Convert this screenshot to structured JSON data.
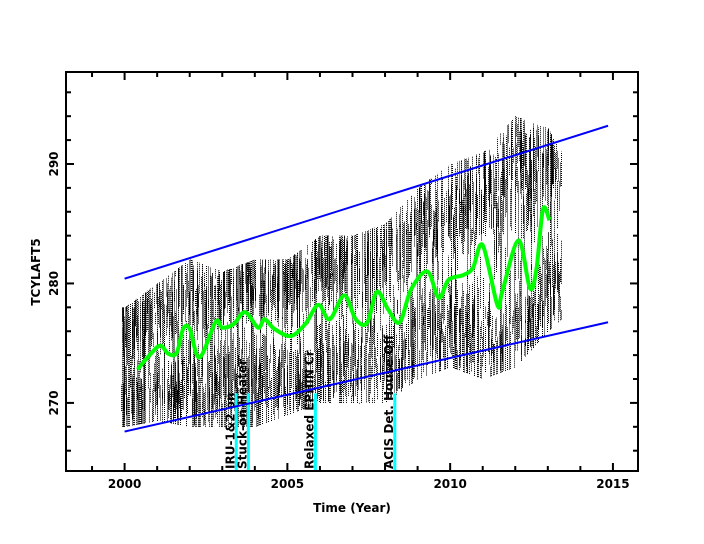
{
  "chart_data": {
    "type": "scatter",
    "title": "",
    "xlabel": "Time (Year)",
    "ylabel": "TCYLAFT5",
    "xlim": [
      1998.2,
      2015.77
    ],
    "ylim": [
      264.3,
      297.7
    ],
    "xticks": [
      2000,
      2005,
      2010,
      2015
    ],
    "xtick_labels": [
      "2000",
      "2005",
      "2010",
      "2015"
    ],
    "yticks": [
      270,
      280,
      290
    ],
    "ytick_labels": [
      "270",
      "280",
      "290"
    ],
    "grid": false,
    "colors": {
      "scatter": "#000000",
      "smooth": "#00ff00",
      "limits": "#0000ff",
      "events": "#00ffff"
    },
    "scatter_envelope": {
      "x": [
        2000,
        2001,
        2002,
        2003,
        2004,
        2005,
        2006,
        2007,
        2008,
        2009,
        2010,
        2011,
        2012,
        2013,
        2013.4
      ],
      "lower": [
        268,
        268.5,
        268,
        268,
        268,
        269,
        270,
        270,
        270,
        272,
        273,
        272,
        273,
        276,
        277
      ],
      "upper": [
        278,
        280,
        282,
        281,
        282,
        282,
        284,
        284,
        285,
        288,
        290,
        291,
        294,
        293,
        291
      ]
    },
    "smooth_series": {
      "x": [
        2000.4,
        2000.8,
        2001.1,
        2001.35,
        2001.6,
        2001.8,
        2002.0,
        2002.3,
        2002.8,
        2003.0,
        2003.35,
        2003.7,
        2004.1,
        2004.3,
        2004.6,
        2005.1,
        2005.55,
        2005.95,
        2006.3,
        2006.75,
        2007.1,
        2007.45,
        2007.75,
        2008.1,
        2008.45,
        2008.8,
        2009.3,
        2009.65,
        2009.95,
        2010.4,
        2010.7,
        2011.0,
        2011.45,
        2011.6,
        2012.1,
        2012.45,
        2012.65,
        2012.85,
        2013.05
      ],
      "y": [
        272.8,
        274.1,
        274.8,
        274.1,
        274.2,
        276.2,
        276.2,
        273.8,
        276.8,
        276.3,
        276.6,
        277.6,
        276.3,
        277.0,
        276.2,
        275.6,
        276.6,
        278.2,
        277.0,
        279.0,
        277.0,
        276.7,
        279.3,
        277.8,
        276.75,
        279.5,
        281.0,
        278.8,
        280.3,
        280.7,
        281.3,
        283.2,
        278.2,
        279.3,
        283.6,
        279.6,
        281.2,
        286.2,
        285.3
      ]
    },
    "limit_lines": [
      {
        "x": [
          2000,
          2014.85
        ],
        "y": [
          280.4,
          293.2
        ]
      },
      {
        "x": [
          2000,
          2014.85
        ],
        "y": [
          267.6,
          276.75
        ]
      }
    ],
    "events": [
      {
        "x": 2003.43,
        "label": "IRU-1&2 on"
      },
      {
        "x": 2003.8,
        "label": "Stuck-on Heater"
      },
      {
        "x": 2005.86,
        "label": "Relaxed EPHIN Cr"
      },
      {
        "x": 2008.3,
        "label": "ACIS Det. House Off"
      }
    ]
  }
}
